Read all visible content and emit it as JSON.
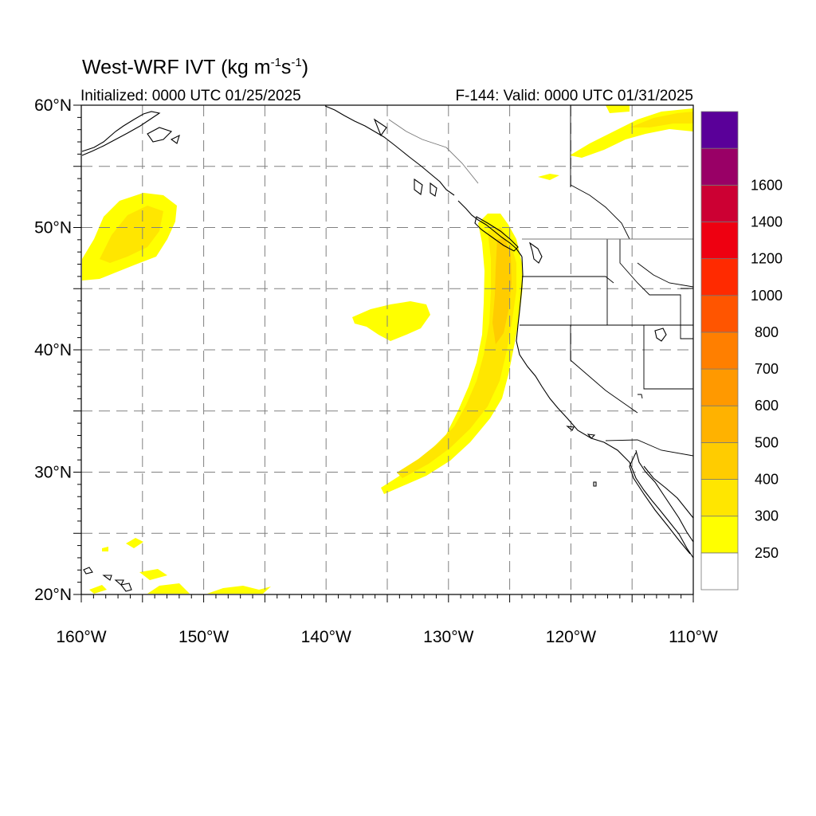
{
  "title": {
    "main": "West-WRF IVT (kg m",
    "exp1": "-1",
    "mid": "s",
    "exp2": "-1",
    "end": ")"
  },
  "initialized": "Initialized: 0000 UTC 01/25/2025",
  "valid": "F-144: Valid: 0000 UTC 01/31/2025",
  "map": {
    "lon_range": [
      -160,
      -110
    ],
    "lat_range": [
      20,
      60
    ],
    "grid": true,
    "lat_ticks": [
      {
        "value": 60,
        "label": "60°N"
      },
      {
        "value": 50,
        "label": "50°N"
      },
      {
        "value": 40,
        "label": "40°N"
      },
      {
        "value": 30,
        "label": "30°N"
      },
      {
        "value": 20,
        "label": "20°N"
      }
    ],
    "lon_ticks": [
      {
        "value": -160,
        "label": "160°W"
      },
      {
        "value": -150,
        "label": "150°W"
      },
      {
        "value": -140,
        "label": "140°W"
      },
      {
        "value": -130,
        "label": "130°W"
      },
      {
        "value": -120,
        "label": "120°W"
      },
      {
        "value": -110,
        "label": "110°W"
      }
    ]
  },
  "colorbar": {
    "levels": [
      {
        "label": "250",
        "color": "#ffff00"
      },
      {
        "label": "300",
        "color": "#ffe600"
      },
      {
        "label": "400",
        "color": "#ffcc00"
      },
      {
        "label": "500",
        "color": "#ffb200"
      },
      {
        "label": "600",
        "color": "#ff9900"
      },
      {
        "label": "700",
        "color": "#ff7f00"
      },
      {
        "label": "800",
        "color": "#ff5500"
      },
      {
        "label": "1000",
        "color": "#ff2a00"
      },
      {
        "label": "1200",
        "color": "#ee0011"
      },
      {
        "label": "1400",
        "color": "#cc0033"
      },
      {
        "label": "1600",
        "color": "#990066"
      }
    ],
    "below_color": "#ffffff",
    "top_color": "#5a0099"
  }
}
